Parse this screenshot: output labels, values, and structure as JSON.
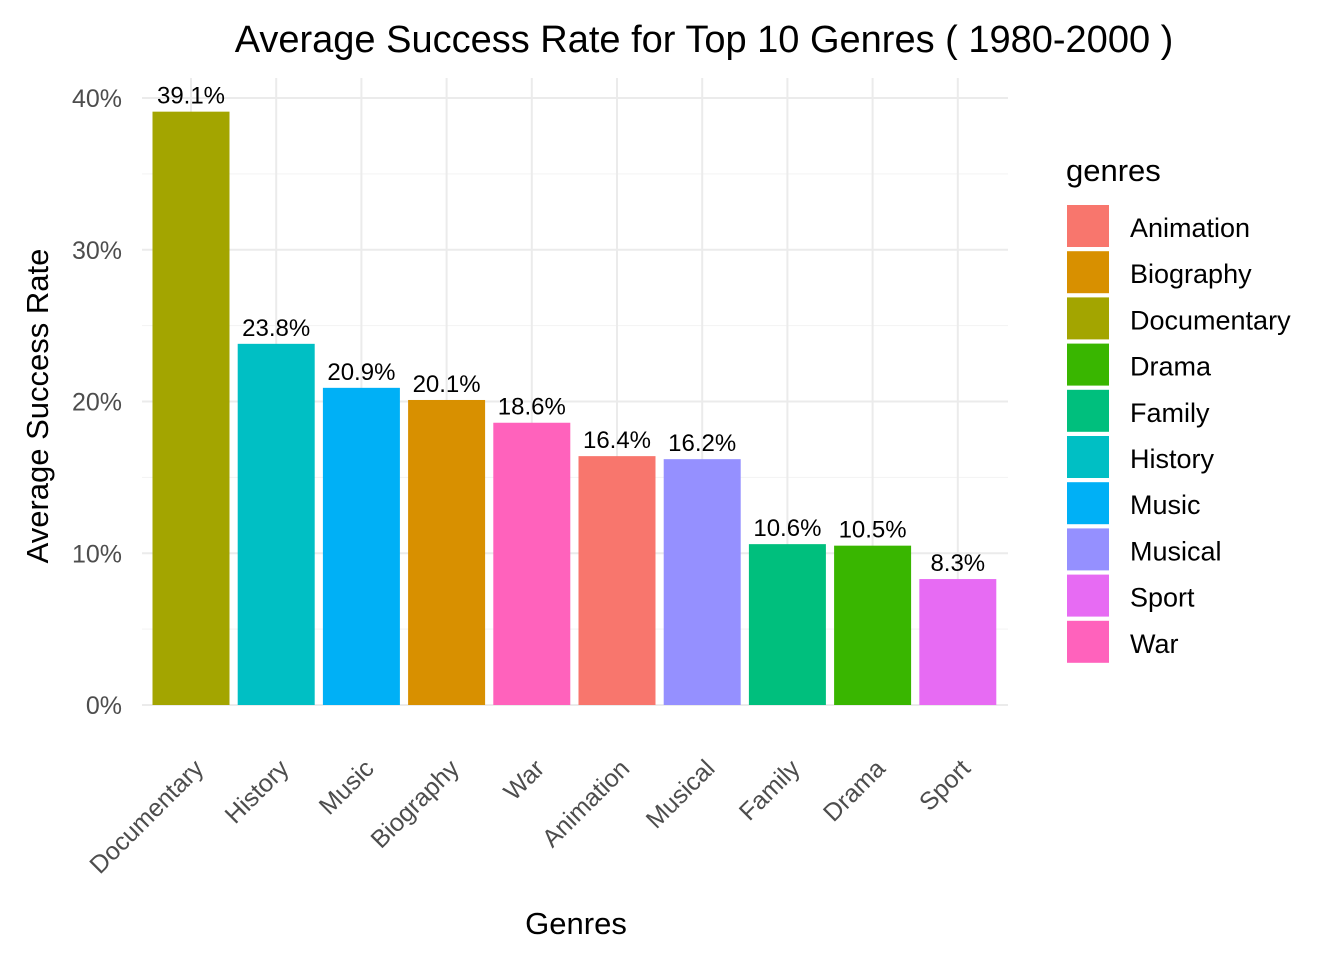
{
  "chart_data": {
    "type": "bar",
    "title": "Average Success Rate for Top 10 Genres ( 1980-2000 )",
    "xlabel": "Genres",
    "ylabel": "Average Success Rate",
    "categories": [
      "Documentary",
      "History",
      "Music",
      "Biography",
      "War",
      "Animation",
      "Musical",
      "Family",
      "Drama",
      "Sport"
    ],
    "values": [
      39.1,
      23.8,
      20.9,
      20.1,
      18.6,
      16.4,
      16.2,
      10.6,
      10.5,
      8.3
    ],
    "value_labels": [
      "39.1%",
      "23.8%",
      "20.9%",
      "20.1%",
      "18.6%",
      "16.4%",
      "16.2%",
      "10.6%",
      "10.5%",
      "8.3%"
    ],
    "ylim": [
      0,
      40
    ],
    "y_ticks": [
      0,
      10,
      20,
      30,
      40
    ],
    "y_tick_labels": [
      "0%",
      "10%",
      "20%",
      "30%",
      "40%"
    ],
    "grid": true,
    "legend": {
      "title": "genres",
      "placement": "right",
      "entries": [
        {
          "name": "Animation",
          "color": "#F8766D"
        },
        {
          "name": "Biography",
          "color": "#D89000"
        },
        {
          "name": "Documentary",
          "color": "#A3A500"
        },
        {
          "name": "Drama",
          "color": "#39B600"
        },
        {
          "name": "Family",
          "color": "#00BF7D"
        },
        {
          "name": "History",
          "color": "#00BFC4"
        },
        {
          "name": "Music",
          "color": "#00B0F6"
        },
        {
          "name": "Musical",
          "color": "#9590FF"
        },
        {
          "name": "Sport",
          "color": "#E76BF3"
        },
        {
          "name": "War",
          "color": "#FF62BC"
        }
      ]
    }
  }
}
